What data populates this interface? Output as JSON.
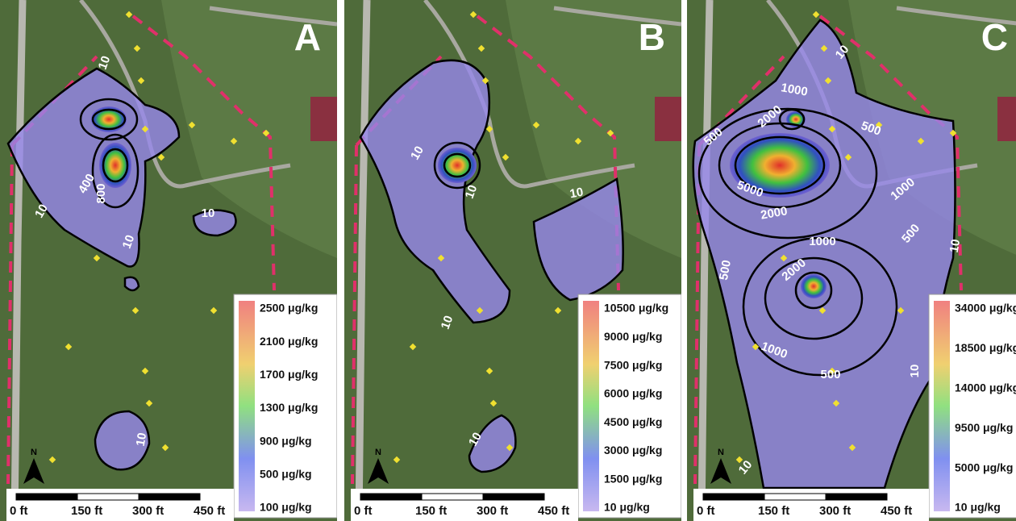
{
  "panels": [
    {
      "label": "A",
      "legend": [
        "2500 μg/kg",
        "2100 μg/kg",
        "1700 μg/kg",
        "1300 μg/kg",
        "900 μg/kg",
        "500 μg/kg",
        "100 μg/kg"
      ],
      "contour_labels": [
        "10",
        "10",
        "400",
        "800",
        "10",
        "10",
        "10"
      ],
      "scale": [
        "0 ft",
        "150 ft",
        "300 ft",
        "450 ft"
      ],
      "north": "N"
    },
    {
      "label": "B",
      "legend": [
        "10500 μg/kg",
        "9000 μg/kg",
        "7500 μg/kg",
        "6000 μg/kg",
        "4500 μg/kg",
        "3000 μg/kg",
        "1500 μg/kg",
        "10 μg/kg"
      ],
      "contour_labels": [
        "10",
        "10",
        "10",
        "10",
        "10"
      ],
      "scale": [
        "0 ft",
        "150 ft",
        "300 ft",
        "450 ft"
      ],
      "north": "N"
    },
    {
      "label": "C",
      "legend": [
        "34000 μg/kg",
        "18500 μg/kg",
        "14000 μg/kg",
        "9500 μg/kg",
        "5000 μg/kg",
        "10 μg/kg"
      ],
      "contour_labels": [
        "10",
        "1000",
        "2000",
        "500",
        "500",
        "1000",
        "5000",
        "2000",
        "500",
        "1000",
        "2000",
        "500",
        "10",
        "1000",
        "500",
        "10",
        "10"
      ],
      "scale": [
        "0 ft",
        "150 ft",
        "300 ft",
        "450 ft"
      ],
      "north": "N"
    }
  ]
}
